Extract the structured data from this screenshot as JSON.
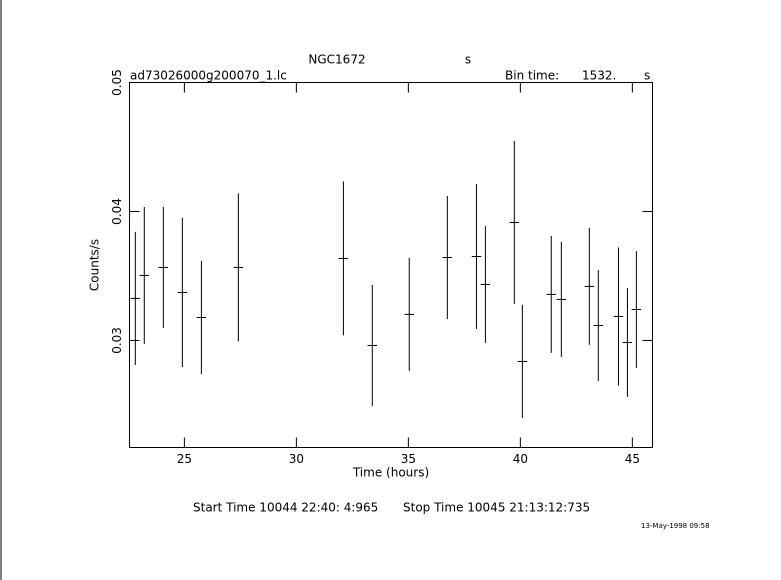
{
  "chart_data": {
    "type": "errorbar",
    "title": "NGC1672",
    "title_unit": "s",
    "file_name": "ad73026000g200070_1.lc",
    "bin_time_label": "Bin time:",
    "bin_time": "1532.",
    "bin_time_unit": "s",
    "xlabel": "Time (hours)",
    "ylabel": "Counts/s",
    "start_time": "Start Time 10044 22:40: 4:965",
    "stop_time": "Stop Time 10045 21:13:12:735",
    "timestamp": "13-May-1998 09:58",
    "xlim": [
      22.55,
      45.9
    ],
    "ylim": [
      0.0217,
      0.05
    ],
    "xticks": [
      25,
      30,
      35,
      40,
      45
    ],
    "yticks": [
      0.03,
      0.04,
      0.05
    ],
    "color": "#000000",
    "xerr": 0.21,
    "x": [
      22.81,
      23.21,
      24.06,
      24.91,
      25.76,
      27.41,
      32.1,
      33.39,
      35.04,
      36.74,
      38.04,
      38.44,
      39.73,
      40.09,
      41.38,
      41.83,
      43.08,
      43.48,
      44.38,
      44.78,
      45.18
    ],
    "values": [
      0.03326,
      0.03504,
      0.03566,
      0.03372,
      0.03178,
      0.03566,
      0.03636,
      0.02961,
      0.03202,
      0.03643,
      0.03651,
      0.03434,
      0.03915,
      0.02837,
      0.03357,
      0.03318,
      0.03419,
      0.03116,
      0.03186,
      0.02984,
      0.0324
    ],
    "errors": [
      0.00516,
      0.00531,
      0.00469,
      0.00578,
      0.00438,
      0.00574,
      0.00597,
      0.00469,
      0.00438,
      0.00477,
      0.00562,
      0.00453,
      0.00632,
      0.00438,
      0.00453,
      0.00446,
      0.00453,
      0.0043,
      0.00535,
      0.00422,
      0.00453
    ]
  }
}
